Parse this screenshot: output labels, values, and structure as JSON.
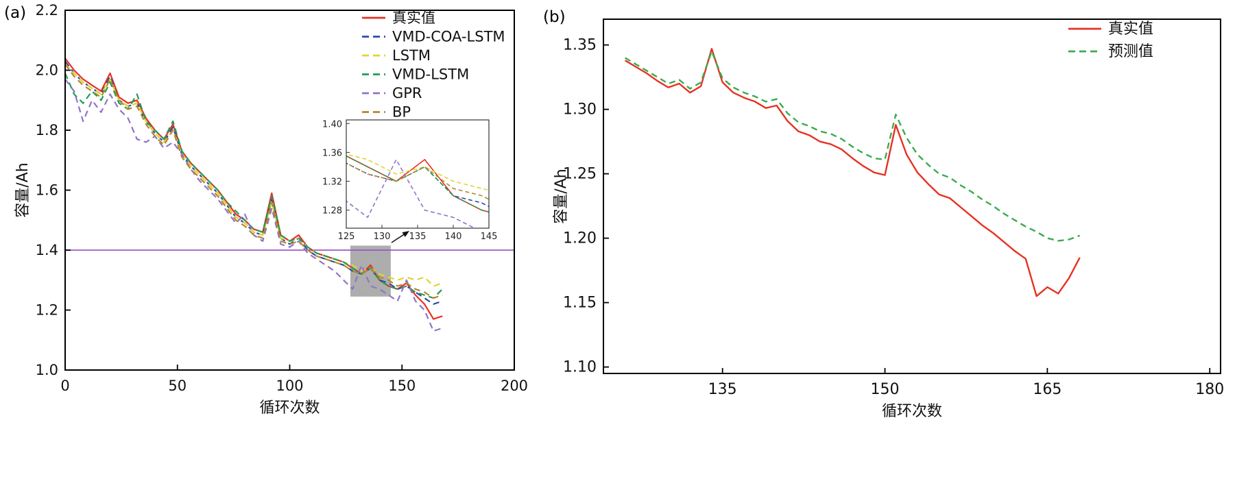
{
  "figure": {
    "background": "#ffffff"
  },
  "chart_data": [
    {
      "type": "line",
      "panel_label": "(a)",
      "title": "",
      "xlabel": "循环次数",
      "ylabel": "容量/Ah",
      "xlim": [
        0,
        200
      ],
      "ylim": [
        1.0,
        2.2
      ],
      "xticks": [
        "0",
        "50",
        "100",
        "150",
        "200"
      ],
      "yticks": [
        "1.0",
        "1.2",
        "1.4",
        "1.6",
        "1.8",
        "2.0",
        "2.2"
      ],
      "grid": false,
      "legend_position": "top-right-inside",
      "x": [
        0,
        4,
        8,
        12,
        16,
        20,
        24,
        28,
        32,
        36,
        40,
        44,
        48,
        52,
        56,
        60,
        64,
        68,
        72,
        76,
        80,
        84,
        88,
        92,
        96,
        100,
        104,
        108,
        112,
        116,
        120,
        124,
        128,
        132,
        136,
        140,
        144,
        148,
        152,
        156,
        160,
        164,
        168
      ],
      "series": [
        {
          "name": "真实值",
          "color": "#e63122",
          "dash": "solid",
          "values": [
            2.04,
            2.0,
            1.97,
            1.95,
            1.93,
            1.99,
            1.91,
            1.89,
            1.9,
            1.84,
            1.8,
            1.77,
            1.82,
            1.73,
            1.69,
            1.66,
            1.63,
            1.6,
            1.56,
            1.52,
            1.5,
            1.47,
            1.46,
            1.59,
            1.45,
            1.43,
            1.45,
            1.41,
            1.39,
            1.38,
            1.37,
            1.36,
            1.34,
            1.32,
            1.35,
            1.3,
            1.28,
            1.27,
            1.29,
            1.25,
            1.22,
            1.17,
            1.18
          ]
        },
        {
          "name": "VMD-COA-LSTM",
          "color": "#2b4ba8",
          "dash": "dashed",
          "values": [
            2.03,
            1.99,
            1.96,
            1.94,
            1.92,
            1.98,
            1.9,
            1.88,
            1.89,
            1.83,
            1.79,
            1.76,
            1.81,
            1.72,
            1.68,
            1.65,
            1.62,
            1.59,
            1.55,
            1.51,
            1.49,
            1.46,
            1.45,
            1.57,
            1.44,
            1.42,
            1.44,
            1.4,
            1.38,
            1.37,
            1.36,
            1.35,
            1.33,
            1.32,
            1.34,
            1.3,
            1.29,
            1.27,
            1.28,
            1.26,
            1.24,
            1.22,
            1.23
          ]
        },
        {
          "name": "LSTM",
          "color": "#e0d531",
          "dash": "dashed",
          "values": [
            2.02,
            1.99,
            1.96,
            1.94,
            1.92,
            1.97,
            1.9,
            1.88,
            1.89,
            1.83,
            1.79,
            1.76,
            1.8,
            1.72,
            1.68,
            1.65,
            1.62,
            1.59,
            1.55,
            1.51,
            1.49,
            1.46,
            1.45,
            1.56,
            1.44,
            1.43,
            1.44,
            1.41,
            1.39,
            1.38,
            1.37,
            1.36,
            1.35,
            1.33,
            1.34,
            1.32,
            1.31,
            1.3,
            1.31,
            1.3,
            1.31,
            1.28,
            1.29
          ]
        },
        {
          "name": "VMD-LSTM",
          "color": "#1f9e52",
          "dash": "dashed",
          "values": [
            1.99,
            1.92,
            1.89,
            1.93,
            1.9,
            1.96,
            1.89,
            1.87,
            1.92,
            1.83,
            1.8,
            1.77,
            1.83,
            1.73,
            1.69,
            1.66,
            1.63,
            1.6,
            1.56,
            1.53,
            1.5,
            1.47,
            1.46,
            1.58,
            1.45,
            1.43,
            1.44,
            1.41,
            1.39,
            1.38,
            1.37,
            1.36,
            1.34,
            1.32,
            1.34,
            1.3,
            1.28,
            1.27,
            1.28,
            1.26,
            1.25,
            1.24,
            1.27
          ]
        },
        {
          "name": "GPR",
          "color": "#9173c8",
          "dash": "dashed",
          "values": [
            1.97,
            1.93,
            1.83,
            1.9,
            1.86,
            1.92,
            1.87,
            1.84,
            1.77,
            1.76,
            1.78,
            1.74,
            1.76,
            1.72,
            1.67,
            1.63,
            1.6,
            1.57,
            1.53,
            1.49,
            1.52,
            1.45,
            1.43,
            1.54,
            1.42,
            1.41,
            1.43,
            1.39,
            1.37,
            1.35,
            1.33,
            1.3,
            1.27,
            1.35,
            1.28,
            1.27,
            1.25,
            1.23,
            1.3,
            1.23,
            1.2,
            1.13,
            1.14
          ]
        },
        {
          "name": "BP",
          "color": "#b5862e",
          "dash": "dashed",
          "values": [
            2.02,
            1.98,
            1.95,
            1.93,
            1.91,
            1.97,
            1.9,
            1.87,
            1.88,
            1.82,
            1.78,
            1.75,
            1.8,
            1.71,
            1.67,
            1.64,
            1.61,
            1.58,
            1.54,
            1.5,
            1.48,
            1.45,
            1.44,
            1.56,
            1.43,
            1.42,
            1.43,
            1.4,
            1.38,
            1.37,
            1.36,
            1.35,
            1.33,
            1.32,
            1.34,
            1.31,
            1.3,
            1.28,
            1.29,
            1.27,
            1.26,
            1.24,
            1.25
          ]
        }
      ],
      "threshold_line": {
        "y": 1.4,
        "color": "#9c59c9"
      },
      "highlight_rect": {
        "x0": 127,
        "x1": 145,
        "y0": 1.245,
        "y1": 1.415,
        "color": "#adadad"
      },
      "inset": {
        "xlim": [
          125,
          145
        ],
        "ylim": [
          1.255,
          1.405
        ],
        "xticks": [
          "125",
          "130",
          "135",
          "140",
          "145"
        ],
        "yticks": [
          "1.28",
          "1.32",
          "1.36",
          "1.40"
        ]
      }
    },
    {
      "type": "line",
      "panel_label": "(b)",
      "title": "",
      "xlabel": "循环次数",
      "ylabel": "容量/Ah",
      "xlim": [
        124,
        181
      ],
      "ylim": [
        1.095,
        1.37
      ],
      "xticks": [
        "135",
        "150",
        "165",
        "180"
      ],
      "yticks": [
        "1.10",
        "1.15",
        "1.20",
        "1.25",
        "1.30",
        "1.35"
      ],
      "grid": false,
      "legend_position": "top-right-inside",
      "x": [
        126,
        127,
        128,
        129,
        130,
        131,
        132,
        133,
        134,
        135,
        136,
        137,
        138,
        139,
        140,
        141,
        142,
        143,
        144,
        145,
        146,
        147,
        148,
        149,
        150,
        151,
        152,
        153,
        154,
        155,
        156,
        157,
        158,
        159,
        160,
        161,
        162,
        163,
        164,
        165,
        166,
        167,
        168
      ],
      "series": [
        {
          "name": "真实值",
          "color": "#e63122",
          "dash": "solid",
          "values": [
            1.338,
            1.333,
            1.328,
            1.322,
            1.317,
            1.32,
            1.313,
            1.318,
            1.347,
            1.321,
            1.313,
            1.309,
            1.306,
            1.301,
            1.303,
            1.291,
            1.283,
            1.28,
            1.275,
            1.273,
            1.269,
            1.262,
            1.256,
            1.251,
            1.249,
            1.288,
            1.265,
            1.251,
            1.242,
            1.234,
            1.231,
            1.224,
            1.217,
            1.21,
            1.204,
            1.197,
            1.19,
            1.184,
            1.155,
            1.162,
            1.157,
            1.169,
            1.185
          ]
        },
        {
          "name": "预测值",
          "color": "#3bab4d",
          "dash": "dashed",
          "values": [
            1.34,
            1.335,
            1.33,
            1.325,
            1.32,
            1.323,
            1.316,
            1.321,
            1.345,
            1.324,
            1.317,
            1.313,
            1.31,
            1.306,
            1.308,
            1.297,
            1.29,
            1.287,
            1.283,
            1.281,
            1.277,
            1.271,
            1.266,
            1.262,
            1.261,
            1.296,
            1.278,
            1.265,
            1.257,
            1.25,
            1.247,
            1.241,
            1.236,
            1.23,
            1.225,
            1.219,
            1.214,
            1.209,
            1.205,
            1.2,
            1.198,
            1.199,
            1.202
          ]
        }
      ]
    }
  ]
}
